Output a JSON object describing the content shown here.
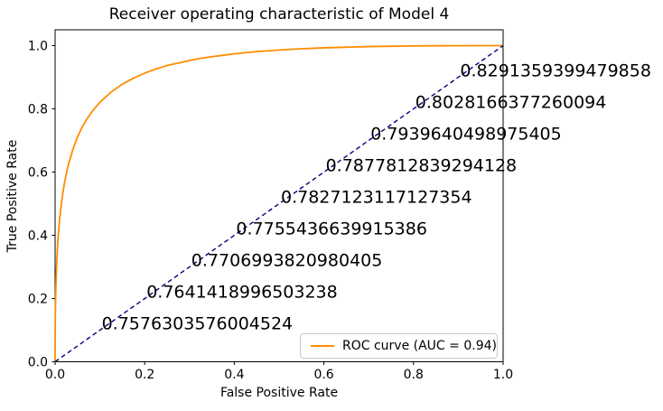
{
  "chart_data": {
    "type": "line",
    "title": "Receiver operating characteristic of Model 4",
    "xlabel": "False Positive Rate",
    "ylabel": "True Positive Rate",
    "xlim": [
      0.0,
      1.0
    ],
    "ylim": [
      0.0,
      1.05
    ],
    "grid": false,
    "x_ticks": [
      "0.0",
      "0.2",
      "0.4",
      "0.6",
      "0.8",
      "1.0"
    ],
    "y_ticks": [
      "0.0",
      "0.2",
      "0.4",
      "0.6",
      "0.8",
      "1.0"
    ],
    "auc": 0.94,
    "legend": {
      "position": "lower right",
      "entries": [
        {
          "label": "ROC curve (AUC = 0.94)",
          "color": "#ff8c00"
        }
      ]
    },
    "series": [
      {
        "name": "ROC curve",
        "color": "#ff8c00",
        "style": "solid",
        "x": [
          0,
          0.0001,
          0.0005,
          0.001,
          0.0015,
          0.0025,
          0.0035,
          0.005,
          0.0075,
          0.01,
          0.015,
          0.02,
          0.025,
          0.03,
          0.04,
          0.05,
          0.06,
          0.07,
          0.085,
          0.1,
          0.125,
          0.15,
          0.175,
          0.2,
          0.225,
          0.25,
          0.275,
          0.3,
          0.325,
          0.35,
          0.4,
          0.45,
          0.5,
          0.55,
          0.6,
          0.65,
          0.7,
          0.75,
          0.8,
          0.85,
          0.9,
          0.95,
          1
        ],
        "y": [
          0,
          0.064,
          0.138,
          0.187,
          0.221,
          0.272,
          0.31,
          0.354,
          0.408,
          0.45,
          0.512,
          0.558,
          0.595,
          0.625,
          0.673,
          0.711,
          0.741,
          0.766,
          0.796,
          0.821,
          0.853,
          0.878,
          0.897,
          0.913,
          0.926,
          0.937,
          0.945,
          0.953,
          0.96,
          0.965,
          0.974,
          0.981,
          0.986,
          0.99,
          0.993,
          0.995,
          0.997,
          0.998,
          0.999,
          0.9994,
          0.9997,
          0.9999,
          1
        ]
      },
      {
        "name": "chance diagonal",
        "color": "#000080",
        "style": "dashed",
        "x": [
          0,
          1
        ],
        "y": [
          0,
          1
        ]
      }
    ],
    "annotations": [
      {
        "x": 0.9,
        "y": 0.9,
        "label": "0.8291359399479858"
      },
      {
        "x": 0.8,
        "y": 0.8,
        "label": "0.8028166377260094"
      },
      {
        "x": 0.7,
        "y": 0.7,
        "label": "0.7939640498975405"
      },
      {
        "x": 0.6,
        "y": 0.6,
        "label": "0.7877812839294128"
      },
      {
        "x": 0.5,
        "y": 0.5,
        "label": "0.7827123117127354"
      },
      {
        "x": 0.4,
        "y": 0.4,
        "label": "0.7755436639915386"
      },
      {
        "x": 0.3,
        "y": 0.3,
        "label": "0.7706993820980405"
      },
      {
        "x": 0.2,
        "y": 0.2,
        "label": "0.7641418996503238"
      },
      {
        "x": 0.1,
        "y": 0.1,
        "label": "0.7576303576004524"
      }
    ]
  },
  "colors": {
    "axes": "#000000",
    "text": "#000000",
    "roc_curve": "#ff8c00",
    "chance_line": "#000080",
    "legend_border": "#c8c8c8"
  }
}
